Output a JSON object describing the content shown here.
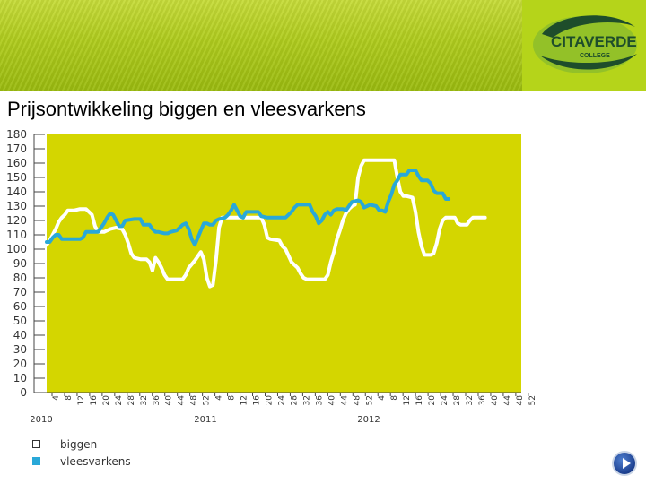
{
  "title": "Prijsontwikkeling biggen en vleesvarkens",
  "logo": {
    "text": "CITAVERDE",
    "subtext": "COLLEGE",
    "color": "#1e4d2b"
  },
  "colors": {
    "plot_bg": "#d4d600",
    "series_biggen": "#ffffff",
    "series_vleesvarkens": "#29a8d8"
  },
  "chart_data": {
    "type": "line",
    "title": "Prijsontwikkeling biggen en vleesvarkens",
    "xlabel": "",
    "ylabel": "",
    "ylim": [
      0,
      180
    ],
    "yticks": [
      0,
      10,
      20,
      30,
      40,
      50,
      60,
      70,
      80,
      90,
      100,
      110,
      120,
      130,
      140,
      150,
      160,
      170,
      180
    ],
    "x_tick_labels": [
      "4",
      "8",
      "12",
      "16",
      "20",
      "24",
      "28",
      "32",
      "36",
      "40",
      "44",
      "48",
      "52",
      "4",
      "8",
      "12",
      "16",
      "20",
      "24",
      "28",
      "32",
      "36",
      "40",
      "44",
      "48",
      "52",
      "4",
      "8",
      "12",
      "16",
      "20",
      "24",
      "28",
      "32",
      "36",
      "40",
      "44",
      "48",
      "52"
    ],
    "year_labels": [
      "2010",
      "2011",
      "2012"
    ],
    "x_unit": "week (index from week 1 of 2010)",
    "grid": false,
    "legend": "bottom-left",
    "series": [
      {
        "name": "biggen",
        "color": "#ffffff",
        "points": [
          [
            1,
            103
          ],
          [
            2,
            106
          ],
          [
            3,
            110
          ],
          [
            4,
            114
          ],
          [
            5,
            119
          ],
          [
            6,
            122
          ],
          [
            7,
            124
          ],
          [
            8,
            127
          ],
          [
            10,
            127
          ],
          [
            12,
            128
          ],
          [
            14,
            128
          ],
          [
            16,
            124
          ],
          [
            17,
            116
          ],
          [
            18,
            112
          ],
          [
            20,
            112
          ],
          [
            22,
            114
          ],
          [
            24,
            115
          ],
          [
            26,
            114
          ],
          [
            27,
            110
          ],
          [
            28,
            104
          ],
          [
            29,
            97
          ],
          [
            30,
            94
          ],
          [
            32,
            93
          ],
          [
            34,
            93
          ],
          [
            35,
            91
          ],
          [
            36,
            85
          ],
          [
            37,
            94
          ],
          [
            38,
            91
          ],
          [
            39,
            87
          ],
          [
            40,
            82
          ],
          [
            41,
            79
          ],
          [
            42,
            79
          ],
          [
            45,
            79
          ],
          [
            46,
            79
          ],
          [
            47,
            82
          ],
          [
            48,
            87
          ],
          [
            50,
            92
          ],
          [
            52,
            98
          ],
          [
            53,
            93
          ],
          [
            54,
            80
          ],
          [
            55,
            74
          ],
          [
            56,
            75
          ],
          [
            57,
            92
          ],
          [
            58,
            115
          ],
          [
            59,
            122
          ],
          [
            60,
            122
          ],
          [
            64,
            122
          ],
          [
            68,
            122
          ],
          [
            70,
            122
          ],
          [
            72,
            122
          ],
          [
            73,
            117
          ],
          [
            74,
            108
          ],
          [
            75,
            107
          ],
          [
            78,
            106
          ],
          [
            79,
            102
          ],
          [
            80,
            100
          ],
          [
            82,
            91
          ],
          [
            84,
            87
          ],
          [
            85,
            83
          ],
          [
            86,
            80
          ],
          [
            87,
            79
          ],
          [
            90,
            79
          ],
          [
            93,
            79
          ],
          [
            94,
            82
          ],
          [
            95,
            91
          ],
          [
            96,
            98
          ],
          [
            97,
            107
          ],
          [
            98,
            113
          ],
          [
            99,
            120
          ],
          [
            100,
            125
          ],
          [
            101,
            128
          ],
          [
            102,
            130
          ],
          [
            103,
            131
          ],
          [
            104,
            150
          ],
          [
            105,
            158
          ],
          [
            106,
            162
          ],
          [
            108,
            162
          ],
          [
            110,
            162
          ],
          [
            112,
            162
          ],
          [
            114,
            162
          ],
          [
            116,
            162
          ],
          [
            117,
            150
          ],
          [
            118,
            140
          ],
          [
            119,
            137
          ],
          [
            120,
            137
          ],
          [
            122,
            136
          ],
          [
            123,
            126
          ],
          [
            124,
            112
          ],
          [
            125,
            102
          ],
          [
            126,
            96
          ],
          [
            128,
            96
          ],
          [
            129,
            97
          ],
          [
            130,
            104
          ],
          [
            131,
            114
          ],
          [
            132,
            120
          ],
          [
            133,
            122
          ],
          [
            136,
            122
          ],
          [
            137,
            118
          ],
          [
            138,
            117
          ],
          [
            140,
            117
          ],
          [
            141,
            120
          ],
          [
            142,
            122
          ],
          [
            144,
            122
          ],
          [
            146,
            122
          ]
        ]
      },
      {
        "name": "vleesvarkens",
        "color": "#29a8d8",
        "points": [
          [
            1,
            105
          ],
          [
            2,
            105
          ],
          [
            3,
            108
          ],
          [
            4,
            110
          ],
          [
            5,
            110
          ],
          [
            6,
            107
          ],
          [
            8,
            107
          ],
          [
            10,
            107
          ],
          [
            12,
            107
          ],
          [
            13,
            108
          ],
          [
            14,
            112
          ],
          [
            16,
            112
          ],
          [
            18,
            112
          ],
          [
            19,
            115
          ],
          [
            20,
            118
          ],
          [
            21,
            122
          ],
          [
            22,
            125
          ],
          [
            23,
            124
          ],
          [
            24,
            120
          ],
          [
            25,
            116
          ],
          [
            26,
            116
          ],
          [
            27,
            120
          ],
          [
            30,
            121
          ],
          [
            32,
            121
          ],
          [
            33,
            117
          ],
          [
            35,
            117
          ],
          [
            36,
            114
          ],
          [
            37,
            112
          ],
          [
            38,
            112
          ],
          [
            40,
            111
          ],
          [
            41,
            111
          ],
          [
            42,
            112
          ],
          [
            44,
            113
          ],
          [
            45,
            115
          ],
          [
            46,
            117
          ],
          [
            47,
            118
          ],
          [
            48,
            114
          ],
          [
            49,
            107
          ],
          [
            50,
            103
          ],
          [
            51,
            108
          ],
          [
            52,
            113
          ],
          [
            53,
            118
          ],
          [
            54,
            118
          ],
          [
            55,
            117
          ],
          [
            56,
            117
          ],
          [
            57,
            120
          ],
          [
            58,
            121
          ],
          [
            60,
            122
          ],
          [
            61,
            124
          ],
          [
            62,
            127
          ],
          [
            63,
            131
          ],
          [
            64,
            127
          ],
          [
            65,
            123
          ],
          [
            66,
            122
          ],
          [
            67,
            126
          ],
          [
            70,
            126
          ],
          [
            71,
            126
          ],
          [
            72,
            123
          ],
          [
            74,
            122
          ],
          [
            78,
            122
          ],
          [
            80,
            122
          ],
          [
            81,
            124
          ],
          [
            82,
            126
          ],
          [
            83,
            129
          ],
          [
            84,
            131
          ],
          [
            86,
            131
          ],
          [
            88,
            131
          ],
          [
            89,
            126
          ],
          [
            90,
            123
          ],
          [
            91,
            118
          ],
          [
            92,
            120
          ],
          [
            93,
            124
          ],
          [
            94,
            126
          ],
          [
            95,
            124
          ],
          [
            96,
            127
          ],
          [
            97,
            128
          ],
          [
            99,
            128
          ],
          [
            100,
            127
          ],
          [
            101,
            130
          ],
          [
            102,
            133
          ],
          [
            104,
            134
          ],
          [
            105,
            133
          ],
          [
            106,
            129
          ],
          [
            108,
            131
          ],
          [
            110,
            130
          ],
          [
            111,
            127
          ],
          [
            112,
            127
          ],
          [
            113,
            126
          ],
          [
            114,
            133
          ],
          [
            115,
            138
          ],
          [
            116,
            145
          ],
          [
            117,
            148
          ],
          [
            118,
            152
          ],
          [
            120,
            152
          ],
          [
            121,
            155
          ],
          [
            123,
            155
          ],
          [
            124,
            151
          ],
          [
            125,
            148
          ],
          [
            127,
            148
          ],
          [
            128,
            146
          ],
          [
            129,
            141
          ],
          [
            130,
            139
          ],
          [
            132,
            139
          ],
          [
            133,
            135
          ],
          [
            134,
            135
          ]
        ]
      }
    ]
  },
  "legend": {
    "items": [
      {
        "label": "biggen",
        "color": "#ffffff"
      },
      {
        "label": "vleesvarkens",
        "color": "#29a8d8"
      }
    ]
  },
  "nav": {
    "next_icon": "play-arrow-icon"
  }
}
